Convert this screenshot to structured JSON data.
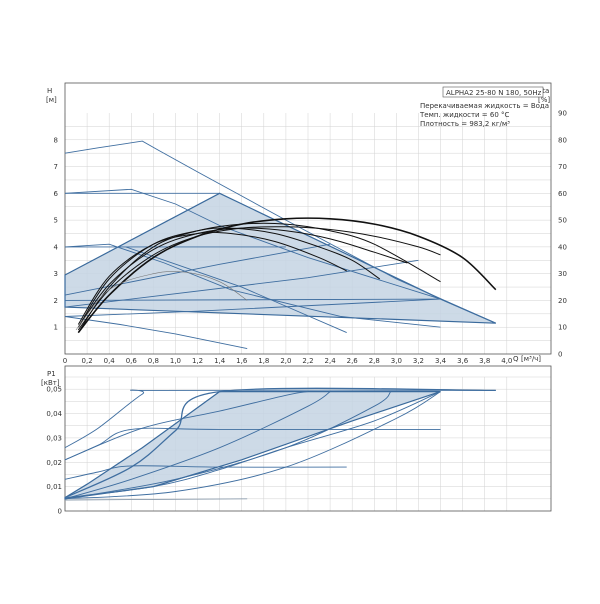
{
  "chart_data": [
    {
      "type": "line",
      "title": "",
      "header_box": "ALPHA2 25-80 N 180, 50Hz",
      "notes": [
        "Перекачиваемая жидкость = Вода",
        "Темп. жидкости = 60 °C",
        "Плотность = 983,2 кг/м³"
      ],
      "ylabel": "H",
      "yunit": "[м]",
      "y2label": "eta",
      "y2unit": "[%]",
      "xlabel": "Q",
      "xunit": "[м³/ч]",
      "xlim": [
        0,
        4.4
      ],
      "ylim": [
        0,
        9
      ],
      "y2lim": [
        0,
        90
      ],
      "xticks": [
        "0",
        "0,2",
        "0,4",
        "0,6",
        "0,8",
        "1,0",
        "1,2",
        "1,4",
        "1,6",
        "1,8",
        "2,0",
        "2,2",
        "2,4",
        "2,6",
        "2,8",
        "3,0",
        "3,2",
        "3,4",
        "3,6",
        "3,8",
        "4,0"
      ],
      "yticks": [
        "1",
        "2",
        "3",
        "4",
        "5",
        "6",
        "7",
        "8"
      ],
      "y2ticks": [
        "0",
        "10",
        "20",
        "30",
        "40",
        "50",
        "60",
        "70",
        "80",
        "90"
      ],
      "grid": true,
      "region": [
        [
          0,
          2.95
        ],
        [
          1.4,
          6.0
        ],
        [
          3.4,
          2.05
        ],
        [
          3.9,
          1.15
        ],
        [
          0,
          1.75
        ]
      ],
      "head_series": [
        [
          [
            0,
            7.5
          ],
          [
            0.3,
            7.7
          ],
          [
            0.7,
            7.95
          ],
          [
            0.85,
            7.6
          ],
          [
            1.2,
            6.8
          ],
          [
            2.0,
            5.0
          ],
          [
            3.0,
            2.8
          ],
          [
            3.9,
            1.15
          ]
        ],
        [
          [
            0,
            6.0
          ],
          [
            0.6,
            6.15
          ],
          [
            1.0,
            5.6
          ],
          [
            1.4,
            4.8
          ],
          [
            2.2,
            3.6
          ],
          [
            3.4,
            2.05
          ]
        ],
        [
          [
            0,
            4.0
          ],
          [
            0.4,
            4.1
          ],
          [
            0.9,
            3.4
          ],
          [
            1.5,
            2.4
          ],
          [
            2.5,
            1.4
          ],
          [
            3.4,
            1.0
          ]
        ],
        [
          [
            0,
            1.4
          ],
          [
            0.5,
            1.1
          ],
          [
            1.0,
            0.75
          ],
          [
            1.65,
            0.2
          ]
        ],
        [
          [
            0,
            6.0
          ],
          [
            1.4,
            6.0
          ]
        ],
        [
          [
            0,
            4.0
          ],
          [
            1.4,
            4.0
          ],
          [
            2.0,
            4.0
          ]
        ],
        [
          [
            0,
            2.0
          ],
          [
            3.4,
            2.05
          ]
        ],
        [
          [
            0,
            1.75
          ],
          [
            2.2,
            2.85
          ],
          [
            3.2,
            3.5
          ]
        ],
        [
          [
            0,
            2.2
          ],
          [
            1.4,
            3.35
          ],
          [
            2.4,
            4.1
          ]
        ],
        [
          [
            0,
            1.4
          ],
          [
            1.2,
            1.6
          ],
          [
            3.4,
            2.05
          ]
        ],
        [
          [
            0.55,
            4.0
          ],
          [
            1.6,
            2.5
          ],
          [
            2.55,
            0.8
          ]
        ]
      ],
      "eta_series": [
        [
          [
            0.12,
            8
          ],
          [
            0.4,
            22
          ],
          [
            0.8,
            36
          ],
          [
            1.2,
            44
          ],
          [
            1.6,
            48.5
          ],
          [
            2.0,
            50.5
          ],
          [
            2.4,
            50.5
          ],
          [
            2.8,
            48.5
          ],
          [
            3.2,
            44
          ],
          [
            3.6,
            36
          ],
          [
            3.9,
            24
          ]
        ],
        [
          [
            0.12,
            9
          ],
          [
            0.4,
            24
          ],
          [
            0.8,
            37
          ],
          [
            1.2,
            44
          ],
          [
            1.6,
            47
          ],
          [
            2.0,
            47.5
          ],
          [
            2.4,
            46.5
          ],
          [
            2.8,
            44
          ],
          [
            3.2,
            40
          ],
          [
            3.4,
            37
          ]
        ],
        [
          [
            0.12,
            10
          ],
          [
            0.4,
            26
          ],
          [
            0.8,
            39
          ],
          [
            1.2,
            45
          ],
          [
            1.6,
            47
          ],
          [
            2.0,
            46
          ],
          [
            2.4,
            43
          ],
          [
            2.8,
            38
          ],
          [
            3.1,
            34
          ]
        ],
        [
          [
            0.12,
            8
          ],
          [
            0.4,
            25
          ],
          [
            0.8,
            40
          ],
          [
            1.2,
            46
          ],
          [
            1.6,
            48.5
          ],
          [
            2.0,
            48.5
          ],
          [
            2.4,
            46
          ],
          [
            2.8,
            41
          ],
          [
            3.4,
            27
          ]
        ],
        [
          [
            0.12,
            10
          ],
          [
            0.4,
            28
          ],
          [
            0.8,
            41
          ],
          [
            1.2,
            46
          ],
          [
            1.5,
            47
          ],
          [
            1.9,
            45
          ],
          [
            2.3,
            40
          ],
          [
            2.6,
            35
          ],
          [
            2.85,
            28
          ]
        ],
        [
          [
            0.12,
            11
          ],
          [
            0.4,
            29
          ],
          [
            0.8,
            41
          ],
          [
            1.2,
            45
          ],
          [
            1.5,
            45
          ],
          [
            1.9,
            42
          ],
          [
            2.3,
            36
          ],
          [
            2.55,
            31
          ]
        ],
        [
          [
            0.1,
            9
          ],
          [
            0.4,
            24
          ],
          [
            0.8,
            30
          ],
          [
            1.1,
            30.5
          ],
          [
            1.4,
            27
          ],
          [
            1.65,
            20
          ]
        ]
      ]
    },
    {
      "type": "line",
      "title": "",
      "ylabel": "P1",
      "yunit": "[кВт]",
      "xlim": [
        0,
        4.4
      ],
      "ylim": [
        0,
        0.055
      ],
      "xticks": [
        "0",
        "0,2",
        "0,4",
        "0,6",
        "0,8",
        "1,0",
        "1,2",
        "1,4",
        "1,6",
        "1,8",
        "2,0",
        "2,2",
        "2,4",
        "2,6",
        "2,8",
        "3,0",
        "3,2",
        "3,4",
        "3,6",
        "3,8",
        "4,0"
      ],
      "yticks": [
        "0",
        "0,01",
        "0,02",
        "0,03",
        "0,04",
        "0,05"
      ],
      "grid": true,
      "region": [
        [
          0,
          0.0055
        ],
        [
          0.2,
          0.011
        ],
        [
          0.7,
          0.026
        ],
        [
          1.4,
          0.049
        ],
        [
          3.4,
          0.049
        ],
        [
          2.6,
          0.037
        ],
        [
          1.6,
          0.021
        ],
        [
          0.8,
          0.01
        ],
        [
          0,
          0.005
        ]
      ],
      "power_series": [
        [
          [
            0,
            0.026
          ],
          [
            0.3,
            0.034
          ],
          [
            0.7,
            0.048
          ],
          [
            0.85,
            0.0495
          ],
          [
            3.9,
            0.0495
          ]
        ],
        [
          [
            0,
            0.021
          ],
          [
            0.3,
            0.027
          ],
          [
            0.6,
            0.0335
          ],
          [
            1.4,
            0.0335
          ],
          [
            3.4,
            0.0335
          ]
        ],
        [
          [
            0,
            0.013
          ],
          [
            0.3,
            0.016
          ],
          [
            0.6,
            0.0185
          ],
          [
            1.4,
            0.018
          ],
          [
            2.55,
            0.018
          ]
        ],
        [
          [
            0,
            0.0045
          ],
          [
            1.65,
            0.005
          ]
        ],
        [
          [
            0,
            0.0055
          ],
          [
            0.6,
            0.018
          ],
          [
            1.0,
            0.033
          ],
          [
            1.4,
            0.049
          ],
          [
            3.9,
            0.0495
          ]
        ],
        [
          [
            0,
            0.005
          ],
          [
            0.6,
            0.013
          ],
          [
            1.4,
            0.026
          ],
          [
            2.2,
            0.043
          ],
          [
            2.4,
            0.049
          ]
        ],
        [
          [
            0,
            0.005
          ],
          [
            1.0,
            0.013
          ],
          [
            2.0,
            0.026
          ],
          [
            2.8,
            0.043
          ],
          [
            2.95,
            0.049
          ]
        ],
        [
          [
            0,
            0.005
          ],
          [
            1.0,
            0.008
          ],
          [
            2.0,
            0.018
          ],
          [
            3.0,
            0.038
          ],
          [
            3.4,
            0.049
          ]
        ],
        [
          [
            0,
            0.0055
          ],
          [
            0.8,
            0.01
          ],
          [
            1.4,
            0.017
          ],
          [
            2.0,
            0.026
          ],
          [
            2.8,
            0.037
          ],
          [
            3.4,
            0.049
          ]
        ],
        [
          [
            0,
            0.021
          ],
          [
            0.7,
            0.034
          ],
          [
            1.4,
            0.041
          ],
          [
            2.0,
            0.0475
          ],
          [
            2.2,
            0.049
          ]
        ]
      ]
    }
  ]
}
